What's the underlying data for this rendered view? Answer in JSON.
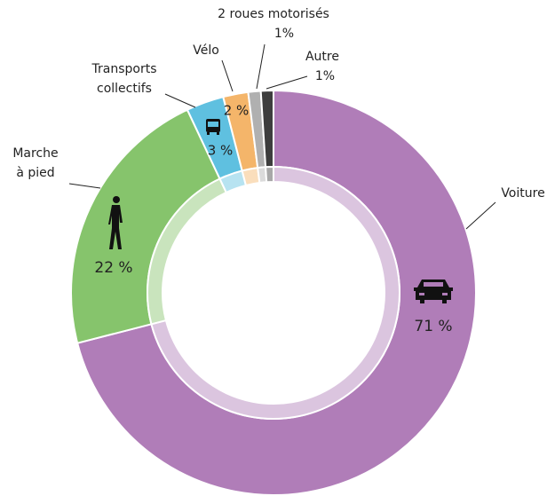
{
  "chart_data": {
    "type": "donut",
    "categories": [
      [
        "Voiture"
      ],
      [
        "Marche",
        "à pied"
      ],
      [
        "Transports",
        "collectifs"
      ],
      [
        "Vélo"
      ],
      [
        "2 roues motorisés"
      ],
      [
        "Autre"
      ]
    ],
    "values": [
      71,
      22,
      3,
      2,
      1,
      1
    ],
    "value_labels": [
      "71 %",
      "22 %",
      "3 %",
      "2 %",
      "1%",
      "1%"
    ],
    "colors": [
      "#b07db8",
      "#86c46c",
      "#5fc0e0",
      "#f4b56a",
      "#b0b0b0",
      "#3d3d3d"
    ]
  }
}
